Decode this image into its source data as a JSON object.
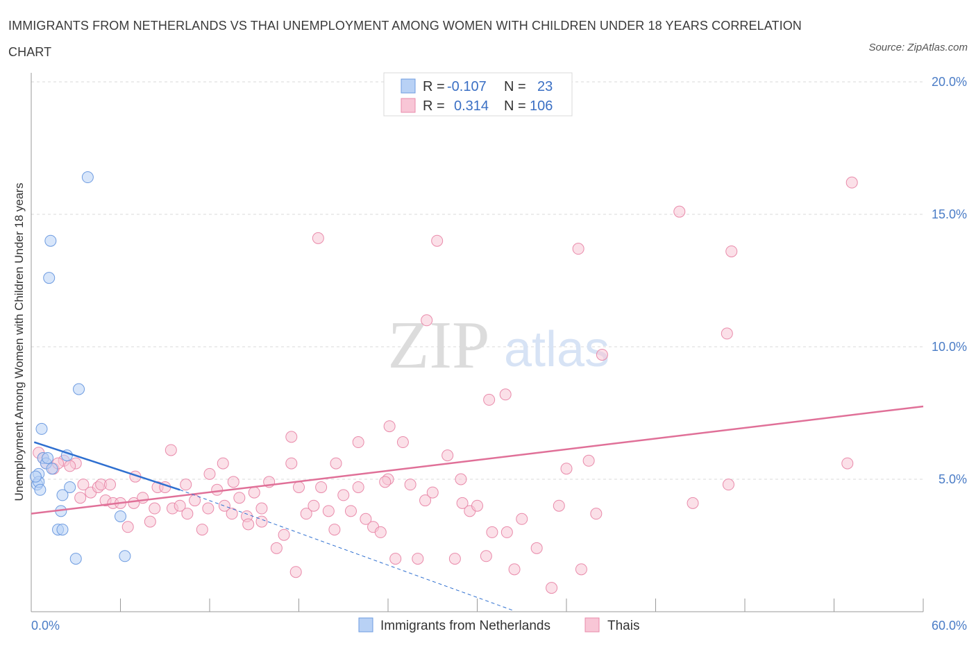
{
  "title": "IMMIGRANTS FROM NETHERLANDS VS THAI UNEMPLOYMENT AMONG WOMEN WITH CHILDREN UNDER 18 YEARS CORRELATION CHART",
  "source": "Source: ZipAtlas.com",
  "watermark": {
    "zip": "ZIP",
    "atlas": "atlas"
  },
  "legend": {
    "r_label": "R =",
    "n_label": "N =",
    "rows": [
      {
        "r": "-0.107",
        "n": "23",
        "color": "#b8d1f5",
        "stroke": "#6d9be0"
      },
      {
        "r": "0.314",
        "n": "106",
        "color": "#f8c6d6",
        "stroke": "#e98aaa"
      }
    ]
  },
  "chart_data": {
    "type": "scatter",
    "xlabel": "",
    "ylabel": "Unemployment Among Women with Children Under 18 years",
    "xlim": [
      0,
      60
    ],
    "ylim": [
      0,
      20
    ],
    "x_tick_labels": [
      "0.0%",
      "60.0%"
    ],
    "y_ticks": [
      5,
      10,
      15,
      20
    ],
    "y_tick_labels": [
      "5.0%",
      "10.0%",
      "15.0%",
      "20.0%"
    ],
    "series": [
      {
        "name": "Immigrants from Netherlands",
        "color": "#b8d1f5",
        "stroke": "#6d9be0",
        "line_color": "#2e6fd0",
        "trend": {
          "x1": 0.2,
          "y1": 6.4,
          "x2": 10.0,
          "y2": 4.6,
          "dash_x2": 32.4,
          "dash_y2": 0.05
        },
        "x": [
          3.8,
          1.3,
          1.2,
          3.2,
          0.7,
          0.8,
          1.0,
          1.4,
          0.5,
          0.4,
          2.4,
          0.5,
          0.6,
          2.6,
          2.1,
          2.0,
          6.0,
          1.8,
          2.1,
          3.0,
          6.3,
          0.3,
          1.1
        ],
        "y": [
          16.4,
          14.0,
          12.6,
          8.4,
          6.9,
          5.8,
          5.6,
          5.4,
          5.2,
          4.8,
          5.9,
          4.9,
          4.6,
          4.7,
          4.4,
          3.8,
          3.6,
          3.1,
          3.1,
          2.0,
          2.1,
          5.1,
          5.8
        ]
      },
      {
        "name": "Thais",
        "color": "#f8c6d6",
        "stroke": "#e98aaa",
        "line_color": "#e07098",
        "trend": {
          "x1": 0,
          "y1": 3.7,
          "x2": 60,
          "y2": 7.75
        },
        "x": [
          55.2,
          43.6,
          19.3,
          27.3,
          36.8,
          47.1,
          26.6,
          46.8,
          38.4,
          30.8,
          31.9,
          24.1,
          17.5,
          22.0,
          9.4,
          0.5,
          1.0,
          1.5,
          2.2,
          3.0,
          3.5,
          4.0,
          4.5,
          5.0,
          5.5,
          6.0,
          6.5,
          7.0,
          7.5,
          8.0,
          8.5,
          9.0,
          9.5,
          10.0,
          10.5,
          11.0,
          11.5,
          12.0,
          12.5,
          13.0,
          13.5,
          14.0,
          14.5,
          15.0,
          15.5,
          16.0,
          16.5,
          17.0,
          17.5,
          18.0,
          18.5,
          19.0,
          19.5,
          20.0,
          20.5,
          21.0,
          21.5,
          22.0,
          22.5,
          23.0,
          23.5,
          24.0,
          24.5,
          25.0,
          26.0,
          26.5,
          27.0,
          28.0,
          28.5,
          29.0,
          29.5,
          30.0,
          31.0,
          32.0,
          32.5,
          33.0,
          34.0,
          35.0,
          35.5,
          36.0,
          37.0,
          37.5,
          38.0,
          46.9,
          54.9,
          44.5,
          0.8,
          1.8,
          2.6,
          3.3,
          4.7,
          5.3,
          6.9,
          8.3,
          10.4,
          11.9,
          12.9,
          13.6,
          14.6,
          15.5,
          17.8,
          20.4,
          23.8,
          25.5,
          28.9,
          30.6
        ],
        "y": [
          16.2,
          15.1,
          14.1,
          14.0,
          13.7,
          13.6,
          11.0,
          10.5,
          9.7,
          8.0,
          8.2,
          7.0,
          6.6,
          6.4,
          6.1,
          6.0,
          5.6,
          5.4,
          5.7,
          5.6,
          4.8,
          4.5,
          4.7,
          4.2,
          4.1,
          4.1,
          3.2,
          5.1,
          4.3,
          3.4,
          4.7,
          4.7,
          3.9,
          4.0,
          3.7,
          4.2,
          3.1,
          5.2,
          4.6,
          4.0,
          3.7,
          4.3,
          3.6,
          4.5,
          3.4,
          4.9,
          2.4,
          2.9,
          5.6,
          4.7,
          3.7,
          4.0,
          4.7,
          3.8,
          5.6,
          4.4,
          3.8,
          4.7,
          3.5,
          3.2,
          3.0,
          5.0,
          2.0,
          6.4,
          2.0,
          4.2,
          4.5,
          5.9,
          2.0,
          4.1,
          3.8,
          4.0,
          3.0,
          3.0,
          1.6,
          3.5,
          2.4,
          0.9,
          4.0,
          5.4,
          1.6,
          5.7,
          3.7,
          4.8,
          5.6,
          4.1,
          5.8,
          5.6,
          5.5,
          4.3,
          4.8,
          4.8,
          4.1,
          3.9,
          4.8,
          3.9,
          5.6,
          4.9,
          3.3,
          3.9,
          1.5,
          3.1,
          4.9,
          4.8,
          5.0,
          2.1
        ]
      }
    ],
    "bottom_legend": [
      "Immigrants from Netherlands",
      "Thais"
    ]
  }
}
